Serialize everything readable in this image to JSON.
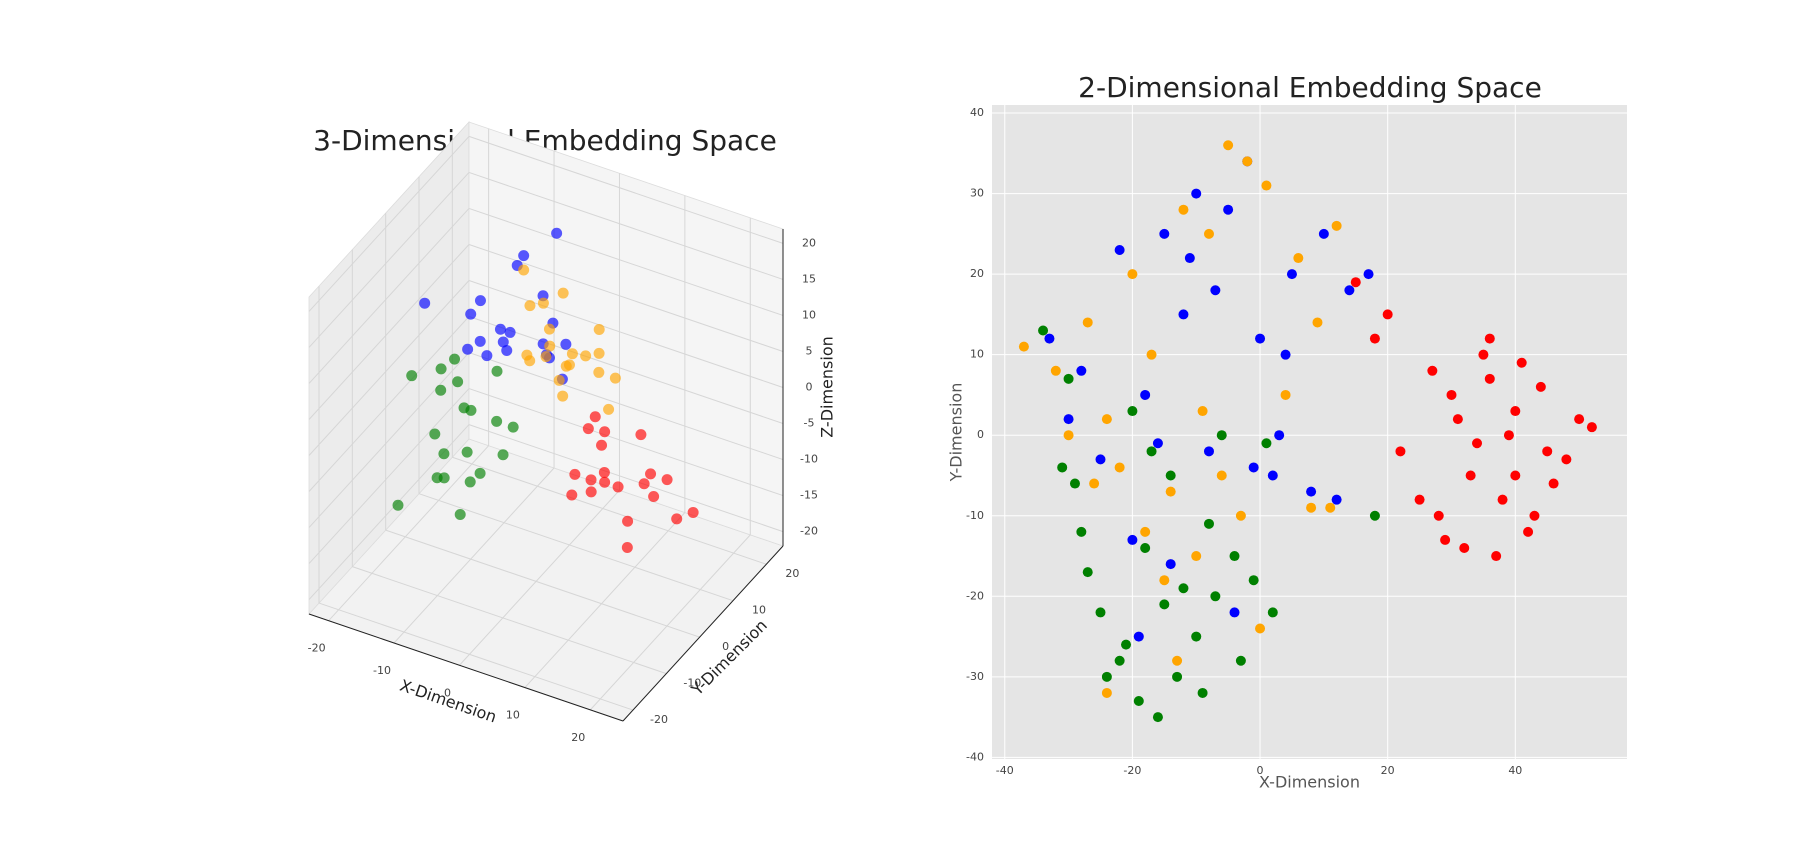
{
  "chart_data": [
    {
      "type": "scatter3d",
      "title": "3-Dimensional Embedding Space",
      "x_label": "X-Dimension",
      "y_label": "Y-Dimension",
      "z_label": "Z-Dimension",
      "xlim": [
        -23,
        25
      ],
      "ylim": [
        -23,
        25
      ],
      "zlim": [
        -22,
        22
      ],
      "xticks": [
        -20,
        -10,
        0,
        10,
        20
      ],
      "yticks": [
        -20,
        -10,
        0,
        10,
        20
      ],
      "zticks": [
        -20,
        -15,
        -10,
        -5,
        0,
        5,
        10,
        15,
        20
      ],
      "grid": true,
      "series": [
        {
          "color": "#0000ff",
          "x": [
            -8,
            -5,
            -3,
            -10,
            -6,
            -2,
            0,
            -7,
            -4,
            -12,
            -1,
            -9,
            -5,
            -3,
            2,
            -6,
            -8,
            -15,
            -4,
            3
          ],
          "y": [
            5,
            2,
            8,
            0,
            -3,
            6,
            4,
            10,
            -2,
            3,
            7,
            12,
            1,
            9,
            5,
            -5,
            -1,
            -4,
            14,
            2
          ],
          "z": [
            8,
            10,
            6,
            12,
            9,
            14,
            7,
            16,
            11,
            5,
            10,
            13,
            8,
            4,
            9,
            12,
            15,
            14,
            18,
            6
          ]
        },
        {
          "color": "#ffa500",
          "x": [
            -2,
            0,
            3,
            -5,
            1,
            5,
            -3,
            2,
            -1,
            4,
            -6,
            0,
            6,
            -4,
            2,
            7,
            -2,
            3,
            -7,
            1
          ],
          "y": [
            8,
            10,
            5,
            12,
            6,
            9,
            14,
            3,
            11,
            7,
            9,
            4,
            12,
            6,
            15,
            8,
            2,
            13,
            10,
            1
          ],
          "z": [
            6,
            3,
            8,
            9,
            1,
            4,
            10,
            5,
            2,
            7,
            3,
            11,
            2,
            12,
            6,
            0,
            7,
            4,
            14,
            9
          ]
        },
        {
          "color": "#008000",
          "x": [
            -10,
            -8,
            -12,
            -6,
            -14,
            -9,
            -4,
            -11,
            -7,
            -15,
            -3,
            -13,
            -8,
            -5,
            -16,
            -10,
            -2,
            -12,
            -6,
            -18
          ],
          "y": [
            -2,
            -5,
            0,
            -8,
            3,
            -10,
            -4,
            -6,
            2,
            -12,
            -1,
            -3,
            -14,
            -7,
            1,
            -9,
            -6,
            4,
            -11,
            -2
          ],
          "z": [
            0,
            -4,
            2,
            -6,
            3,
            -2,
            1,
            -8,
            4,
            -10,
            -1,
            5,
            -3,
            -5,
            -7,
            6,
            -2,
            -4,
            -9,
            2
          ]
        },
        {
          "color": "#ff0000",
          "x": [
            10,
            12,
            15,
            8,
            18,
            14,
            11,
            20,
            9,
            16,
            13,
            22,
            7,
            17,
            12,
            19,
            10,
            15,
            14,
            24
          ],
          "y": [
            0,
            -3,
            2,
            -5,
            -1,
            -7,
            3,
            -4,
            -2,
            1,
            -9,
            -1,
            4,
            -6,
            -3,
            2,
            -8,
            -2,
            -11,
            0
          ],
          "z": [
            0,
            -3,
            2,
            -5,
            -1,
            1,
            -7,
            -2,
            3,
            -4,
            -1,
            -6,
            1,
            -9,
            4,
            -3,
            0,
            -8,
            2,
            -5
          ]
        }
      ]
    },
    {
      "type": "scatter",
      "title": "2-Dimensional Embedding Space",
      "x_label": "X-Dimension",
      "y_label": "Y-Dimension",
      "xlim": [
        -42,
        57.5
      ],
      "ylim": [
        -40.2,
        41
      ],
      "xticks": [
        -40,
        -20,
        0,
        20,
        40
      ],
      "yticks": [
        -40,
        -30,
        -20,
        -10,
        0,
        10,
        20,
        30,
        40
      ],
      "grid": true,
      "series": [
        {
          "color": "#ff0000",
          "x": [
            30,
            35,
            40,
            45,
            50,
            38,
            42,
            33,
            28,
            36,
            44,
            48,
            32,
            39,
            46,
            27,
            34,
            41,
            37,
            52,
            25,
            22,
            18,
            20,
            15,
            29,
            43,
            31,
            36,
            40
          ],
          "y": [
            5,
            10,
            3,
            -2,
            2,
            -8,
            -12,
            -5,
            -10,
            12,
            6,
            -3,
            -14,
            0,
            -6,
            8,
            -1,
            9,
            -15,
            1,
            -8,
            -2,
            12,
            15,
            19,
            -13,
            -10,
            2,
            7,
            -5
          ]
        },
        {
          "color": "#0000ff",
          "x": [
            -33,
            -28,
            -22,
            -15,
            -10,
            -5,
            -2,
            0,
            5,
            10,
            14,
            -18,
            -12,
            -7,
            3,
            8,
            -25,
            -20,
            -8,
            -1,
            4,
            -14,
            -30,
            17,
            -16,
            -11,
            2,
            -19,
            12,
            -4
          ],
          "y": [
            12,
            8,
            23,
            25,
            30,
            28,
            34,
            12,
            20,
            25,
            18,
            5,
            15,
            18,
            0,
            -7,
            -3,
            -13,
            -2,
            -4,
            10,
            -16,
            2,
            20,
            -1,
            22,
            -5,
            -25,
            -8,
            -22
          ]
        },
        {
          "color": "#ffa500",
          "x": [
            -37,
            -32,
            -27,
            -24,
            -20,
            -17,
            -12,
            -8,
            -5,
            -2,
            1,
            6,
            9,
            12,
            -30,
            -22,
            -14,
            -9,
            -3,
            4,
            8,
            -26,
            -18,
            -6,
            0,
            11,
            -13,
            -24,
            -15,
            -10
          ],
          "y": [
            11,
            8,
            14,
            2,
            20,
            10,
            28,
            25,
            36,
            34,
            31,
            22,
            14,
            26,
            0,
            -4,
            -7,
            3,
            -10,
            5,
            -9,
            -6,
            -12,
            -5,
            -24,
            -9,
            -28,
            -32,
            -18,
            -15
          ]
        },
        {
          "color": "#008000",
          "x": [
            -34,
            -30,
            -28,
            -25,
            -22,
            -19,
            -16,
            -13,
            -10,
            -7,
            -4,
            -1,
            2,
            -27,
            -21,
            -15,
            -9,
            -3,
            -24,
            -18,
            -12,
            -6,
            -17,
            -29,
            -20,
            -8,
            -14,
            -31,
            1,
            18
          ],
          "y": [
            13,
            7,
            -12,
            -22,
            -28,
            -33,
            -35,
            -30,
            -25,
            -20,
            -15,
            -18,
            -22,
            -17,
            -26,
            -21,
            -32,
            -28,
            -30,
            -14,
            -19,
            0,
            -2,
            -6,
            3,
            -11,
            -5,
            -4,
            -1,
            -10
          ]
        }
      ]
    }
  ]
}
